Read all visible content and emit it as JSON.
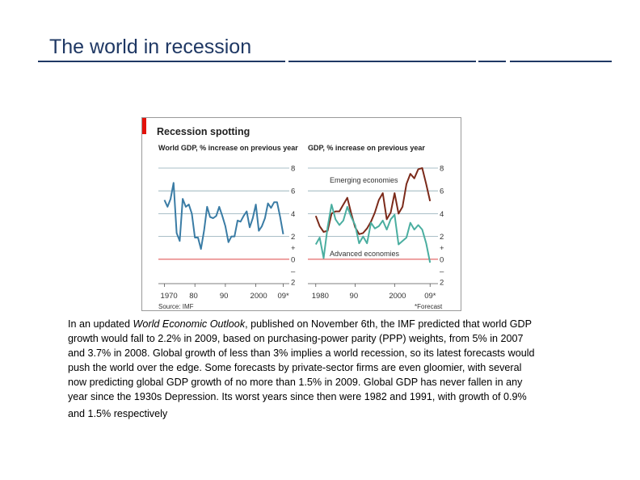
{
  "slide": {
    "title": "The world in recession",
    "title_color": "#1f3864"
  },
  "chart_data": [
    {
      "type": "line",
      "title": "Recession spotting",
      "subtitle": "World GDP, % increase on previous year",
      "source": "Source: IMF",
      "x_tick_labels": [
        "1970",
        "80",
        "90",
        "2000",
        "09*"
      ],
      "y_tick_labels": [
        "8",
        "6",
        "4",
        "2",
        "+",
        "0",
        "–",
        "2"
      ],
      "ylim": [
        -2,
        8
      ],
      "grid": true,
      "series": [
        {
          "name": "World",
          "color": "#3a7ca5",
          "x": [
            1970,
            1971,
            1972,
            1973,
            1974,
            1975,
            1976,
            1977,
            1978,
            1979,
            1980,
            1981,
            1982,
            1983,
            1984,
            1985,
            1986,
            1987,
            1988,
            1989,
            1990,
            1991,
            1992,
            1993,
            1994,
            1995,
            1996,
            1997,
            1998,
            1999,
            2000,
            2001,
            2002,
            2003,
            2004,
            2005,
            2006,
            2007,
            2008,
            2009
          ],
          "values": [
            5.2,
            4.6,
            5.3,
            6.7,
            2.3,
            1.6,
            5.3,
            4.6,
            4.8,
            4.0,
            1.9,
            1.9,
            0.9,
            2.5,
            4.6,
            3.7,
            3.6,
            3.8,
            4.6,
            3.8,
            2.9,
            1.5,
            2.0,
            2.0,
            3.4,
            3.3,
            3.8,
            4.2,
            2.8,
            3.6,
            4.8,
            2.5,
            2.9,
            3.6,
            4.9,
            4.5,
            5.0,
            5.0,
            3.7,
            2.2
          ]
        }
      ]
    },
    {
      "type": "line",
      "title": "Recession spotting",
      "subtitle": "GDP, % increase on previous year",
      "footnote": "*Forecast",
      "x_tick_labels": [
        "1980",
        "90",
        "2000",
        "09*"
      ],
      "y_tick_labels": [
        "8",
        "6",
        "4",
        "2",
        "+",
        "0",
        "–",
        "2"
      ],
      "ylim": [
        -2,
        8
      ],
      "grid": true,
      "series": [
        {
          "name": "Emerging economies",
          "color": "#7b2a1a",
          "x": [
            1980,
            1981,
            1982,
            1983,
            1984,
            1985,
            1986,
            1987,
            1988,
            1989,
            1990,
            1991,
            1992,
            1993,
            1994,
            1995,
            1996,
            1997,
            1998,
            1999,
            2000,
            2001,
            2002,
            2003,
            2004,
            2005,
            2006,
            2007,
            2008,
            2009
          ],
          "values": [
            3.8,
            2.9,
            2.4,
            2.5,
            4.0,
            4.2,
            4.2,
            4.8,
            5.4,
            4.0,
            2.8,
            2.2,
            2.3,
            2.7,
            3.3,
            4.1,
            5.2,
            5.8,
            3.5,
            4.1,
            5.8,
            4.0,
            4.6,
            6.6,
            7.5,
            7.1,
            7.9,
            8.0,
            6.6,
            5.1
          ]
        },
        {
          "name": "Advanced economies",
          "color": "#4aaea0",
          "x": [
            1980,
            1981,
            1982,
            1983,
            1984,
            1985,
            1986,
            1987,
            1988,
            1989,
            1990,
            1991,
            1992,
            1993,
            1994,
            1995,
            1996,
            1997,
            1998,
            1999,
            2000,
            2001,
            2002,
            2003,
            2004,
            2005,
            2006,
            2007,
            2008,
            2009
          ],
          "values": [
            1.3,
            1.9,
            0.1,
            2.8,
            4.8,
            3.5,
            3.0,
            3.4,
            4.6,
            3.7,
            3.0,
            1.4,
            2.0,
            1.4,
            3.2,
            2.7,
            2.9,
            3.4,
            2.6,
            3.5,
            3.9,
            1.3,
            1.6,
            1.9,
            3.2,
            2.6,
            3.0,
            2.6,
            1.4,
            -0.3
          ]
        }
      ],
      "annotations": [
        "Emerging economies",
        "Advanced economies"
      ]
    }
  ],
  "chart_style": {
    "grid_color": "#8eaab5",
    "zero_line_color": "#e05a5a",
    "accent_red": "#e3120b"
  },
  "body": {
    "lines": [
      {
        "pre": "In an updated ",
        "italic": "World Economic Outlook",
        "post": ", published on November 6th, the IMF predicted that world GDP"
      },
      {
        "pre": "growth would fall to 2.2% in 2009, based on purchasing-power parity (PPP) weights, from 5% in 2007",
        "italic": "",
        "post": ""
      },
      {
        "pre": "and 3.7% in 2008. Global growth of less than 3% implies a world recession, so its latest forecasts would",
        "italic": "",
        "post": ""
      },
      {
        "pre": "push the world over the edge. Some forecasts by private-sector firms are even gloomier, with several",
        "italic": "",
        "post": ""
      },
      {
        "pre": "now predicting global GDP growth of no more than 1.5% in 2009. Global GDP has never fallen in any",
        "italic": "",
        "post": ""
      },
      {
        "pre": "year since the 1930s Depression. Its worst years since then were 1982 and 1991, with growth of 0.9%",
        "italic": "",
        "post": ""
      },
      {
        "pre": "and 1.5% respectively",
        "italic": "",
        "post": ""
      }
    ]
  }
}
